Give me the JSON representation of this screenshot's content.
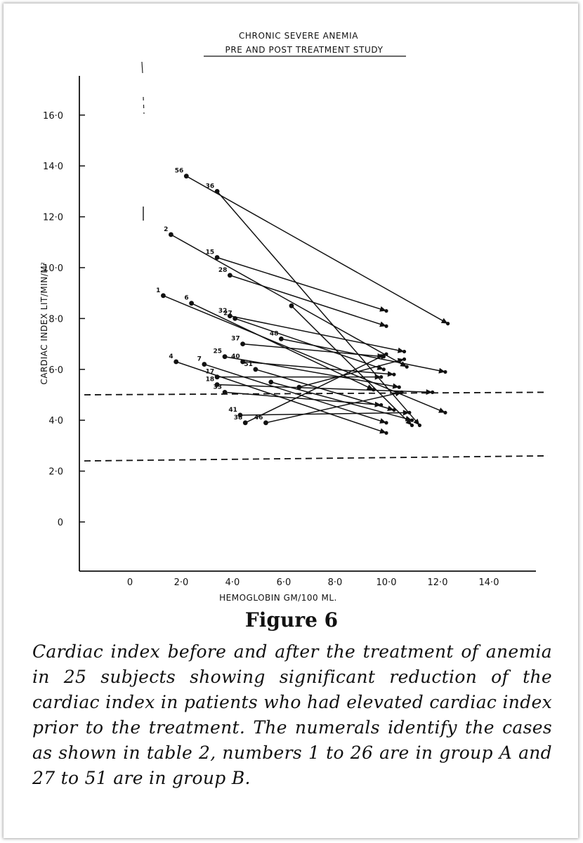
{
  "chart_data": {
    "type": "line",
    "title": "CHRONIC SEVERE ANEMIA",
    "subtitle": "PRE AND POST TREATMENT STUDY",
    "xlabel": "HEMOGLOBIN GM/100 ML.",
    "ylabel": "CARDIAC INDEX LIT/MIN/M²",
    "xlim": [
      -2,
      16
    ],
    "ylim": [
      -2,
      17.5
    ],
    "x_ticks": [
      {
        "value": 0,
        "label": "0"
      },
      {
        "value": 2,
        "label": "2·0"
      },
      {
        "value": 4,
        "label": "4·0"
      },
      {
        "value": 6,
        "label": "6·0"
      },
      {
        "value": 8,
        "label": "8·0"
      },
      {
        "value": 10,
        "label": "10·0"
      },
      {
        "value": 12,
        "label": "12·0"
      },
      {
        "value": 14,
        "label": "14·0"
      }
    ],
    "y_ticks": [
      {
        "value": 0,
        "label": "0"
      },
      {
        "value": 2,
        "label": "2·0"
      },
      {
        "value": 4,
        "label": "4·0"
      },
      {
        "value": 6,
        "label": "6·0"
      },
      {
        "value": 8,
        "label": "8·0"
      },
      {
        "value": 10,
        "label": "10·0"
      },
      {
        "value": 12,
        "label": "12·0"
      },
      {
        "value": 14,
        "label": "14·0"
      },
      {
        "value": 16,
        "label": "16·0"
      }
    ],
    "reference_lines": [
      {
        "name": "upper normal limit",
        "y_start": 5.0,
        "y_end": 5.1,
        "style": "dashed"
      },
      {
        "name": "lower normal limit",
        "y_start": 2.4,
        "y_end": 2.6,
        "style": "dashed"
      }
    ],
    "grid": false,
    "series": [
      {
        "name": "56",
        "pre": [
          2.2,
          13.6
        ],
        "post": [
          12.4,
          7.8
        ]
      },
      {
        "name": "36",
        "pre": [
          3.4,
          13.0
        ],
        "post": [
          11.3,
          3.8
        ]
      },
      {
        "name": "2",
        "pre": [
          1.6,
          11.3
        ],
        "post": [
          10.8,
          6.1
        ]
      },
      {
        "name": "15",
        "pre": [
          3.4,
          10.4
        ],
        "post": [
          10.0,
          8.3
        ]
      },
      {
        "name": "28",
        "pre": [
          3.9,
          9.7
        ],
        "post": [
          10.0,
          7.7
        ]
      },
      {
        "name": "1",
        "pre": [
          1.3,
          8.9
        ],
        "post": [
          12.3,
          4.3
        ]
      },
      {
        "name": "6",
        "pre": [
          2.4,
          8.6
        ],
        "post": [
          9.5,
          5.2
        ]
      },
      {
        "name": "32",
        "pre": [
          3.9,
          8.1
        ],
        "post": [
          10.7,
          6.7
        ]
      },
      {
        "name": "27",
        "pre": [
          4.1,
          8.0
        ],
        "post": [
          9.9,
          6.0
        ]
      },
      {
        "name": "",
        "pre": [
          6.3,
          8.5
        ],
        "post": [
          11.0,
          3.8
        ]
      },
      {
        "name": "48",
        "pre": [
          5.9,
          7.2
        ],
        "post": [
          12.3,
          5.9
        ]
      },
      {
        "name": "37",
        "pre": [
          4.4,
          7.0
        ],
        "post": [
          9.9,
          6.5
        ]
      },
      {
        "name": "25",
        "pre": [
          3.7,
          6.5
        ],
        "post": [
          10.5,
          5.3
        ]
      },
      {
        "name": "40",
        "pre": [
          4.4,
          6.3
        ],
        "post": [
          10.3,
          5.8
        ]
      },
      {
        "name": "4",
        "pre": [
          1.8,
          6.3
        ],
        "post": [
          10.0,
          3.5
        ]
      },
      {
        "name": "7",
        "pre": [
          2.9,
          6.2
        ],
        "post": [
          10.0,
          3.9
        ]
      },
      {
        "name": "51",
        "pre": [
          4.9,
          6.0
        ],
        "post": [
          10.3,
          4.4
        ]
      },
      {
        "name": "17",
        "pre": [
          3.4,
          5.7
        ],
        "post": [
          9.8,
          5.7
        ]
      },
      {
        "name": "18",
        "pre": [
          3.4,
          5.4
        ],
        "post": [
          11.8,
          5.1
        ]
      },
      {
        "name": "33",
        "pre": [
          3.7,
          5.1
        ],
        "post": [
          9.8,
          4.6
        ]
      },
      {
        "name": "41",
        "pre": [
          4.3,
          4.2
        ],
        "post": [
          10.9,
          4.3
        ]
      },
      {
        "name": "38",
        "pre": [
          4.5,
          3.9
        ],
        "post": [
          10.0,
          6.6
        ]
      },
      {
        "name": "46",
        "pre": [
          5.3,
          3.9
        ],
        "post": [
          10.6,
          5.1
        ]
      },
      {
        "name": "",
        "pre": [
          5.5,
          5.5
        ],
        "post": [
          11.0,
          4.0
        ]
      },
      {
        "name": "",
        "pre": [
          6.6,
          5.3
        ],
        "post": [
          10.7,
          6.4
        ]
      }
    ]
  },
  "figure": {
    "label": "Figure 6",
    "caption": "Cardiac index before and after the treatment of anemia in 25 subjects showing significant reduction of the cardiac index in patients who had elevated cardiac index prior to the treatment. The numerals identify the cases as shown in table 2, numbers 1 to 26 are in group A and 27 to 51 are in group B."
  }
}
